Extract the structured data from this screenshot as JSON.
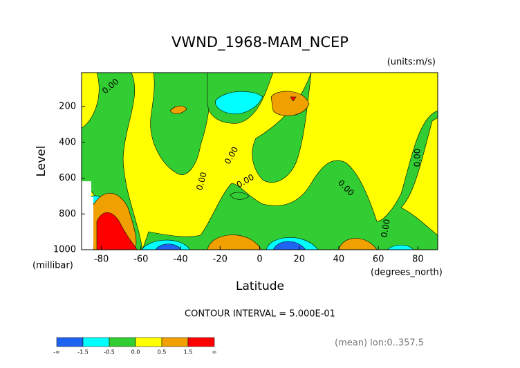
{
  "chart_data": {
    "type": "contour",
    "title": "VWND_1968-MAM_NCEP",
    "units_label": "(units:m/s)",
    "x_label": "Latitude",
    "x_units": "(degrees_north)",
    "y_label": "Level",
    "y_units": "(millibar)",
    "xlim": [
      -90,
      90
    ],
    "xticks": [
      -80,
      -60,
      -40,
      -20,
      0,
      20,
      40,
      60,
      80
    ],
    "ylim": [
      1000,
      10
    ],
    "yticks": [
      200,
      400,
      600,
      800,
      1000
    ],
    "contour_label": "0.00",
    "contour_interval": "CONTOUR INTERVAL = 5.000E-01",
    "footnote": "(mean) lon:0..357.5",
    "colorbar": {
      "levels": [
        "-∞",
        -1.5,
        -0.5,
        {
          "value": 0,
          "label": "0.0"
        },
        0.5,
        1.5,
        "∞"
      ],
      "colors": [
        "#1e64f0",
        "#00ffff",
        "#32cd32",
        "#ffff00",
        "#f0a000",
        "#ff0000"
      ]
    }
  }
}
